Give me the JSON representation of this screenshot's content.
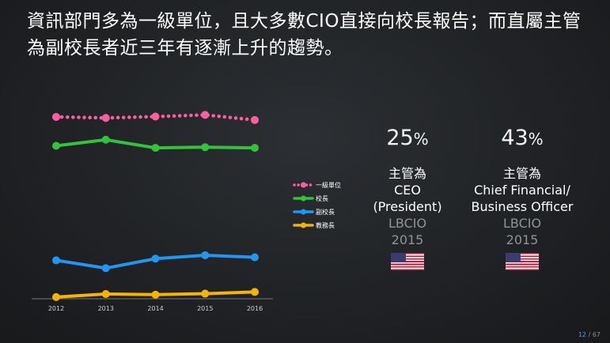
{
  "title": "資訊部門多為一級單位，且大多數CIO直接向校長報告；而直屬主管為副校長者近三年有逐漸上升的趨勢。",
  "chart_data": {
    "type": "line",
    "title": "",
    "xlabel": "",
    "ylabel": "",
    "x": [
      "2012",
      "2013",
      "2014",
      "2015",
      "2016"
    ],
    "ylim": [
      0,
      60
    ],
    "grid": false,
    "legend_position": "right",
    "series": [
      {
        "name": "一級單位",
        "values": [
          53.5,
          53.2,
          53.6,
          54.1,
          52.6
        ],
        "color": "#ff5fa2",
        "style": "dotted"
      },
      {
        "name": "校長",
        "values": [
          45.0,
          46.8,
          44.4,
          44.6,
          44.4
        ],
        "color": "#34c23a",
        "style": "solid"
      },
      {
        "name": "副校長",
        "values": [
          11.3,
          9.0,
          11.8,
          12.8,
          12.2
        ],
        "color": "#2196f3",
        "style": "solid"
      },
      {
        "name": "教務長",
        "values": [
          0.5,
          1.4,
          1.2,
          1.5,
          2.0
        ],
        "color": "#f4b400",
        "style": "solid"
      }
    ]
  },
  "stats": [
    {
      "pct": "25",
      "sign": "%",
      "role": [
        "主管為",
        "CEO",
        "(President)"
      ],
      "source": [
        "LBCIO",
        "2015"
      ],
      "flag": "us-flag-icon"
    },
    {
      "pct": "43",
      "sign": "%",
      "role": [
        "主管為",
        "Chief Financial/",
        "Business Officer"
      ],
      "source": [
        "LBCIO",
        "2015"
      ],
      "flag": "us-flag-icon"
    }
  ],
  "page": {
    "current": "12",
    "sep": "/",
    "total": "67"
  }
}
